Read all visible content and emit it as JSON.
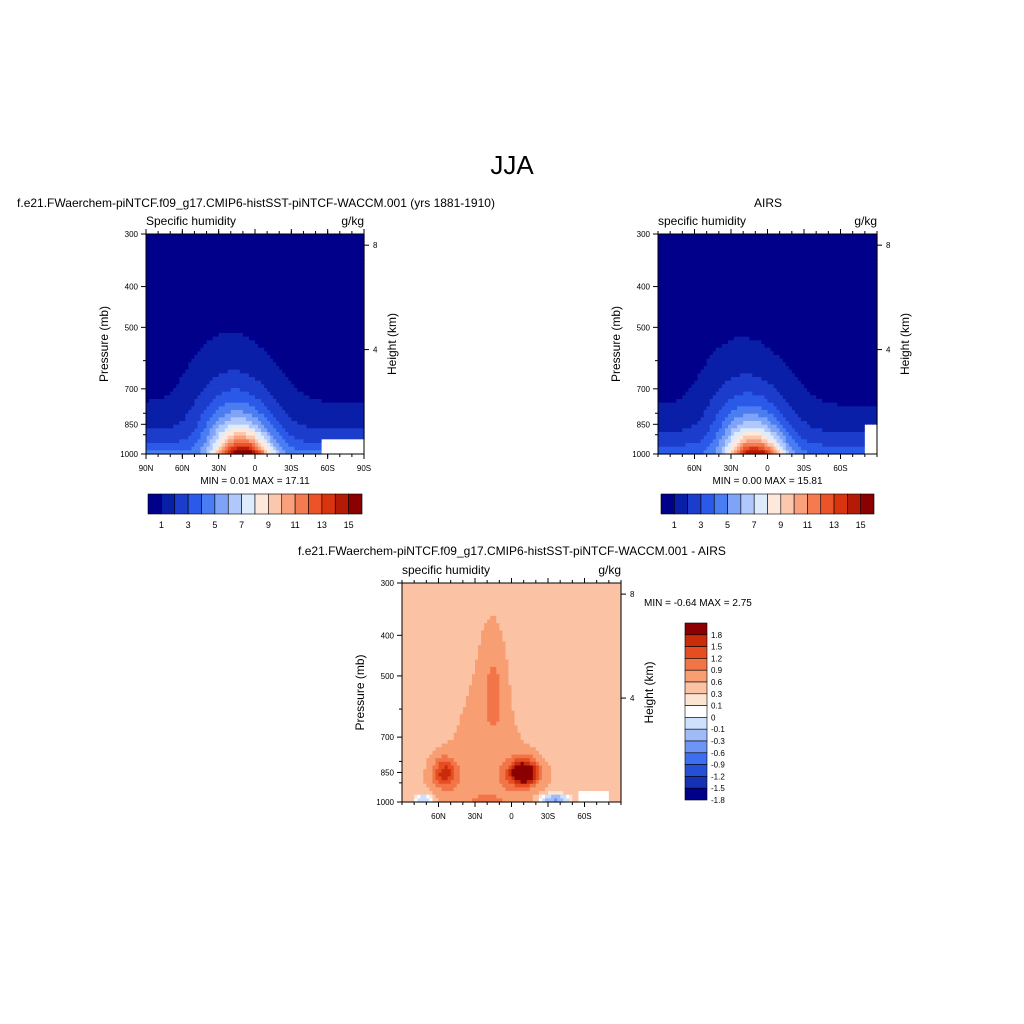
{
  "page_title": "JJA",
  "palettes": {
    "sequential": [
      "#00008b",
      "#0a1fa8",
      "#1c3ccc",
      "#2b59e8",
      "#4a7cf2",
      "#7ea3f7",
      "#b0c8fb",
      "#ddebfd",
      "#fde8dc",
      "#fbc8ae",
      "#f8a17c",
      "#f47a50",
      "#ec5328",
      "#d9340f",
      "#b51a06",
      "#8b0000"
    ],
    "diverging": [
      "#00008b",
      "#1432b4",
      "#2450d8",
      "#3d6ff0",
      "#6e95f6",
      "#9fbcf9",
      "#cfe0fc",
      "#ffffff",
      "#fde3d2",
      "#fbc2a4",
      "#f89e73",
      "#f27548",
      "#e64e22",
      "#c82c0b",
      "#8b0000"
    ]
  },
  "chart_data": [
    {
      "id": "model",
      "type": "heatmap",
      "title": "f.e21.FWaerchem-piNTCF.f09_g17.CMIP6-histSST-piNTCF-WACCM.001 (yrs 1881-1910)",
      "left_label": "Specific humidity",
      "right_label": "g/kg",
      "ylabel": "Pressure (mb)",
      "y2label": "Height (km)",
      "yticks": [
        "300",
        "400",
        "500",
        "700",
        "850",
        "1000"
      ],
      "ytick_values": [
        300,
        400,
        500,
        700,
        850,
        1000
      ],
      "y2ticks": [
        "8",
        "4"
      ],
      "y2tick_values": [
        8,
        4
      ],
      "xticks": [
        "90N",
        "60N",
        "30N",
        "0",
        "30S",
        "60S",
        "90S"
      ],
      "xtick_values": [
        90,
        60,
        30,
        0,
        -30,
        -60,
        -90
      ],
      "xlim": [
        90,
        -90
      ],
      "ylim": [
        300,
        1000
      ],
      "stats": "MIN =   0.01  MAX =  17.11",
      "colorbar_labels": [
        "1",
        "3",
        "5",
        "7",
        "9",
        "11",
        "13",
        "15"
      ],
      "levels": [
        1,
        2,
        3,
        4,
        5,
        6,
        7,
        8,
        9,
        10,
        11,
        12,
        13,
        14,
        15
      ],
      "peak": {
        "lat": 10,
        "p": 1000,
        "value": 17.11
      },
      "missing": [
        {
          "lat_from": -55,
          "lat_to": -90,
          "p_from": 920,
          "p_to": 1000
        }
      ]
    },
    {
      "id": "obs",
      "type": "heatmap",
      "title": "AIRS",
      "left_label": "specific humidity",
      "right_label": "g/kg",
      "ylabel": "Pressure (mb)",
      "y2label": "Height (km)",
      "yticks": [
        "300",
        "400",
        "500",
        "700",
        "850",
        "1000"
      ],
      "ytick_values": [
        300,
        400,
        500,
        700,
        850,
        1000
      ],
      "y2ticks": [
        "8",
        "4"
      ],
      "y2tick_values": [
        8,
        4
      ],
      "xticks": [
        "60N",
        "30N",
        "0",
        "30S",
        "60S"
      ],
      "xtick_values": [
        60,
        30,
        0,
        -30,
        -60
      ],
      "xlim": [
        90,
        -90
      ],
      "ylim": [
        300,
        1000
      ],
      "stats": "MIN =   0.00  MAX =  15.81",
      "colorbar_labels": [
        "1",
        "3",
        "5",
        "7",
        "9",
        "11",
        "13",
        "15"
      ],
      "levels": [
        1,
        2,
        3,
        4,
        5,
        6,
        7,
        8,
        9,
        10,
        11,
        12,
        13,
        14,
        15
      ],
      "peak": {
        "lat": 10,
        "p": 1000,
        "value": 15.81
      },
      "missing": [
        {
          "lat_from": -80,
          "lat_to": -90,
          "p_from": 850,
          "p_to": 1000
        }
      ]
    },
    {
      "id": "diff",
      "type": "heatmap",
      "title": "f.e21.FWaerchem-piNTCF.f09_g17.CMIP6-histSST-piNTCF-WACCM.001 - AIRS",
      "left_label": "specific humidity",
      "right_label": "g/kg",
      "ylabel": "Pressure (mb)",
      "y2label": "Height (km)",
      "yticks": [
        "300",
        "400",
        "500",
        "700",
        "850",
        "1000"
      ],
      "ytick_values": [
        300,
        400,
        500,
        700,
        850,
        1000
      ],
      "y2ticks": [
        "8",
        "4"
      ],
      "y2tick_values": [
        8,
        4
      ],
      "xticks": [
        "60N",
        "30N",
        "0",
        "30S",
        "60S"
      ],
      "xtick_values": [
        60,
        30,
        0,
        -30,
        -60
      ],
      "xlim": [
        90,
        -90
      ],
      "ylim": [
        300,
        1000
      ],
      "stats": "MIN =  -0.64  MAX =   2.75",
      "colorbar_labels": [
        "1.8",
        "1.5",
        "1.2",
        "0.9",
        "0.6",
        "0.3",
        "0.1",
        "0",
        "-0.1",
        "-0.3",
        "-0.6",
        "-0.9",
        "-1.2",
        "-1.5",
        "-1.8"
      ],
      "levels": [
        -1.8,
        -1.5,
        -1.2,
        -0.9,
        -0.6,
        -0.3,
        -0.1,
        0,
        0.1,
        0.3,
        0.6,
        0.9,
        1.2,
        1.5,
        1.8
      ],
      "peak": {
        "lat": -10,
        "p": 850,
        "value": 2.75
      },
      "missing": [
        {
          "lat_from": -55,
          "lat_to": -80,
          "p_from": 940,
          "p_to": 1000
        }
      ]
    }
  ]
}
